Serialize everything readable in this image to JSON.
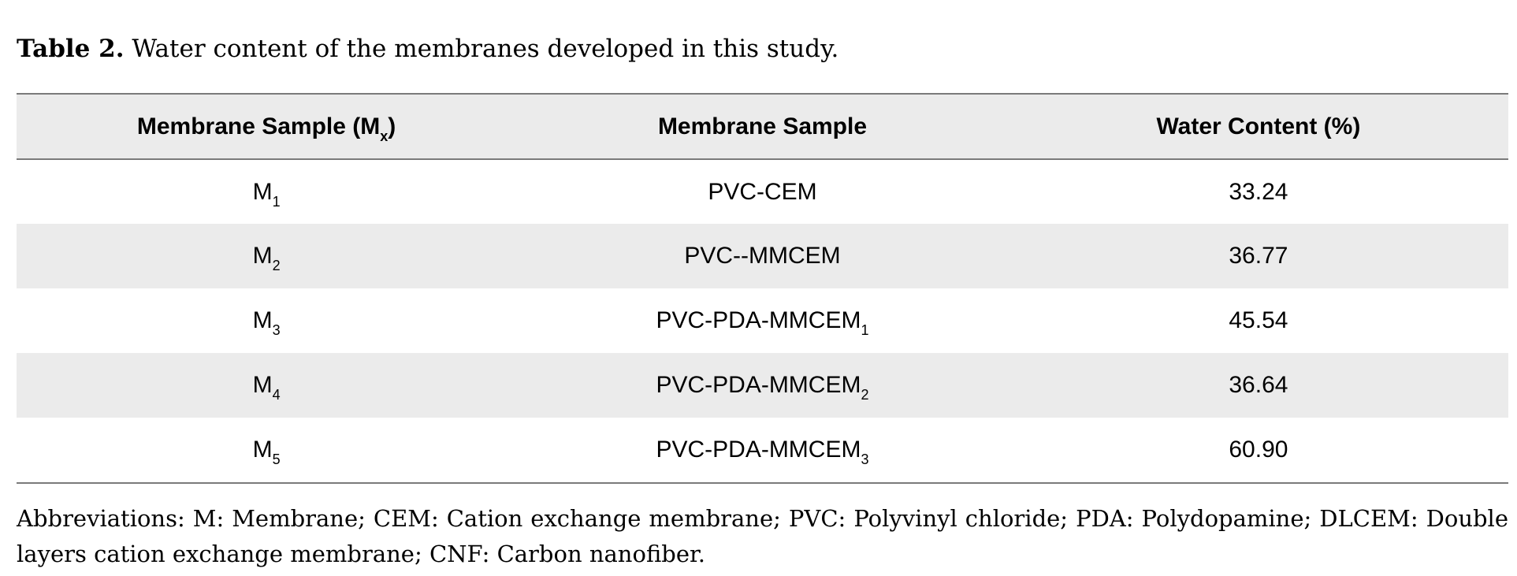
{
  "caption": {
    "label": "Table 2.",
    "text": " Water content of the membranes developed in this study."
  },
  "table": {
    "headers": {
      "col1_main": "Membrane Sample (M",
      "col1_sub": "x",
      "col1_tail": ")",
      "col2": "Membrane Sample",
      "col3": "Water Content (%)"
    },
    "rows": [
      {
        "id_main": "M",
        "id_sub": "1",
        "sample_main": "PVC-CEM",
        "sample_sub": "",
        "water": "33.24"
      },
      {
        "id_main": "M",
        "id_sub": "2",
        "sample_main": "PVC--MMCEM",
        "sample_sub": "",
        "water": "36.77"
      },
      {
        "id_main": "M",
        "id_sub": "3",
        "sample_main": "PVC-PDA-MMCEM",
        "sample_sub": "1",
        "water": "45.54"
      },
      {
        "id_main": "M",
        "id_sub": "4",
        "sample_main": "PVC-PDA-MMCEM",
        "sample_sub": "2",
        "water": "36.64"
      },
      {
        "id_main": "M",
        "id_sub": "5",
        "sample_main": "PVC-PDA-MMCEM",
        "sample_sub": "3",
        "water": "60.90"
      }
    ]
  },
  "abbreviations": "Abbreviations: M: Membrane; CEM: Cation exchange membrane; PVC: Polyvinyl chloride; PDA: Polydopamine; DLCEM: Double layers cation exchange membrane; CNF: Carbon nanofiber."
}
